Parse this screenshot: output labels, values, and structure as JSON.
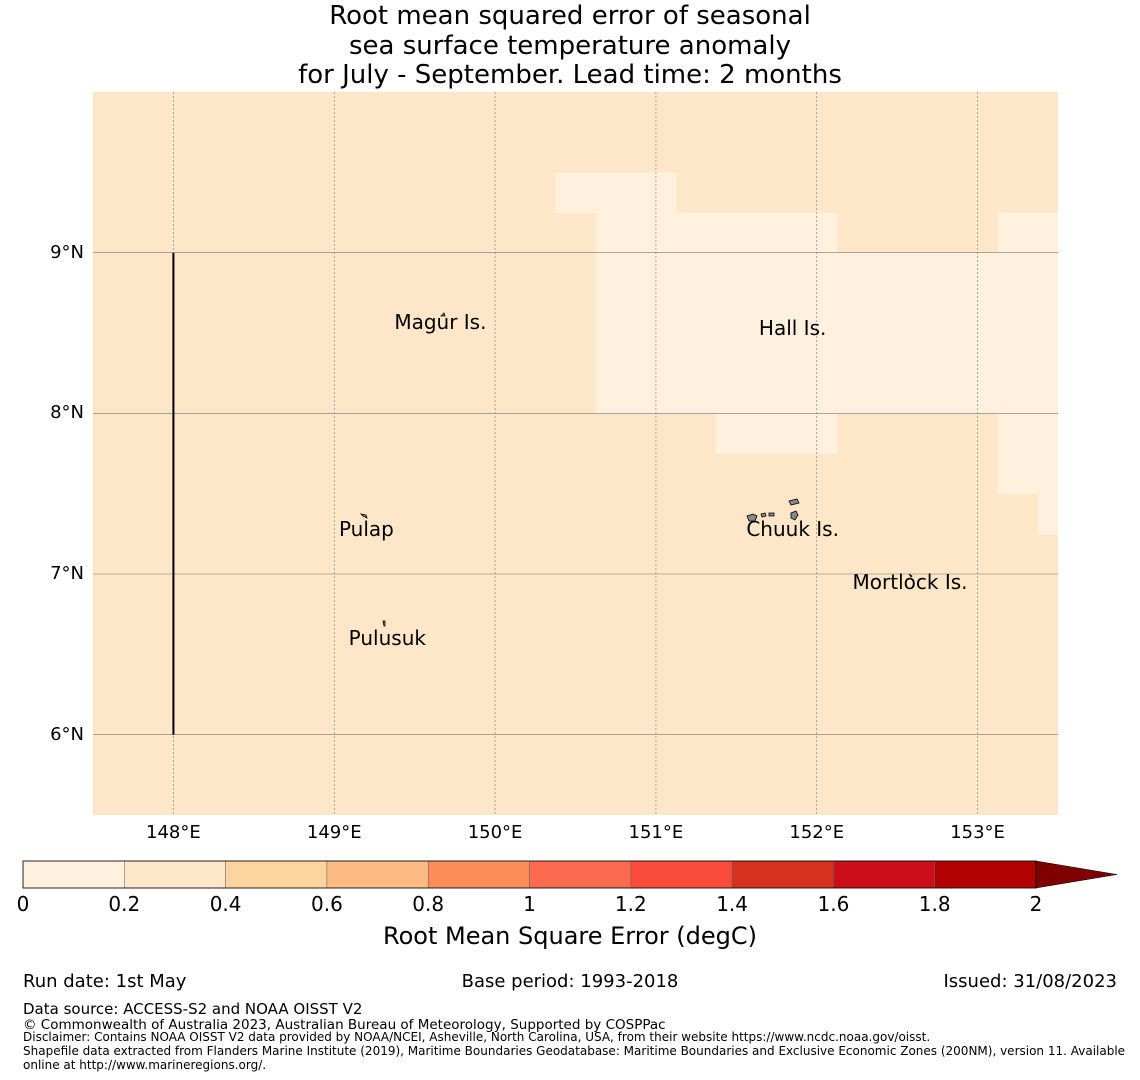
{
  "title": {
    "line1": "Root mean squared error of seasonal",
    "line2": "sea surface temperature anomaly",
    "line3": "for July - September. Lead time: 2 months"
  },
  "map": {
    "lon_range": [
      147.5,
      153.5
    ],
    "lat_range": [
      5.5,
      10.0
    ],
    "lon_ticks": [
      {
        "value": 148,
        "label": "148°E"
      },
      {
        "value": 149,
        "label": "149°E"
      },
      {
        "value": 150,
        "label": "150°E"
      },
      {
        "value": 151,
        "label": "151°E"
      },
      {
        "value": 152,
        "label": "152°E"
      },
      {
        "value": 153,
        "label": "153°E"
      }
    ],
    "lat_ticks": [
      {
        "value": 9,
        "label": "9°N"
      },
      {
        "value": 8,
        "label": "8°N"
      },
      {
        "value": 7,
        "label": "7°N"
      },
      {
        "value": 6,
        "label": "6°N"
      }
    ],
    "background_rmse_class": "0.2-0.4",
    "low_error_cells_0_to_0_2": [
      {
        "lon": [
          150.375,
          151.125
        ],
        "lat": [
          9.25,
          9.5
        ]
      },
      {
        "lon": [
          150.625,
          152.125
        ],
        "lat": [
          8.0,
          9.25
        ]
      },
      {
        "lon": [
          152.125,
          153.125
        ],
        "lat": [
          8.0,
          9.0
        ]
      },
      {
        "lon": [
          153.125,
          153.5
        ],
        "lat": [
          8.0,
          9.25
        ]
      },
      {
        "lon": [
          151.375,
          152.125
        ],
        "lat": [
          7.75,
          8.0
        ]
      },
      {
        "lon": [
          153.125,
          153.375
        ],
        "lat": [
          7.5,
          8.0
        ]
      },
      {
        "lon": [
          153.375,
          153.5
        ],
        "lat": [
          7.25,
          8.0
        ]
      }
    ],
    "eez_boundary_line": {
      "lon": 148.0,
      "lat": [
        6.0,
        9.0
      ]
    },
    "places": [
      {
        "name": "Magur Is.",
        "lon": 149.66,
        "lat": 8.57
      },
      {
        "name": "Hall Is.",
        "lon": 151.85,
        "lat": 8.53
      },
      {
        "name": "Pulap",
        "lon": 149.2,
        "lat": 7.28
      },
      {
        "name": "Chuuk Is.",
        "lon": 151.85,
        "lat": 7.28
      },
      {
        "name": "Mortlock Is.",
        "lon": 152.58,
        "lat": 6.95
      },
      {
        "name": "Pulusuk",
        "lon": 149.33,
        "lat": 6.6
      }
    ]
  },
  "colorbar": {
    "title": "Root Mean Square Error (degC)",
    "bounds": [
      0,
      0.2,
      0.4,
      0.6,
      0.8,
      1,
      1.2,
      1.4,
      1.6,
      1.8,
      2
    ],
    "tick_labels": [
      "0",
      "0.2",
      "0.4",
      "0.6",
      "0.8",
      "1",
      "1.2",
      "1.4",
      "1.6",
      "1.8",
      "2"
    ],
    "colors": [
      "#fff1de",
      "#fee6c8",
      "#fdd49e",
      "#fdbb84",
      "#fc8d59",
      "#fc6b4f",
      "#fb4b3a",
      "#d7301f",
      "#cb0e17",
      "#b30000"
    ],
    "extend_color": "#7f0000"
  },
  "footer": {
    "run_date": "Run date: 1st May",
    "base_period": "Base period: 1993-2018",
    "issued": "Issued: 31/08/2023",
    "data_source": "Data source: ACCESS-S2 and NOAA OISST V2",
    "copyright": "© Commonwealth of Australia 2023, Australian Bureau of Meteorology, Supported by COSPPac",
    "disclaimer": "Disclaimer: Contains NOAA OISST V2 data provided by NOAA/NCEI, Asheville, North Carolina, USA, from their website https://www.ncdc.noaa.gov/oisst.",
    "shapefile_line1": "Shapefile data extracted from Flanders Marine Institute (2019), Maritime Boundaries Geodatabase: Maritime Boundaries and Exclusive Economic Zones (200NM), version 11. Available",
    "shapefile_line2": "online at http://www.marineregions.org/."
  }
}
